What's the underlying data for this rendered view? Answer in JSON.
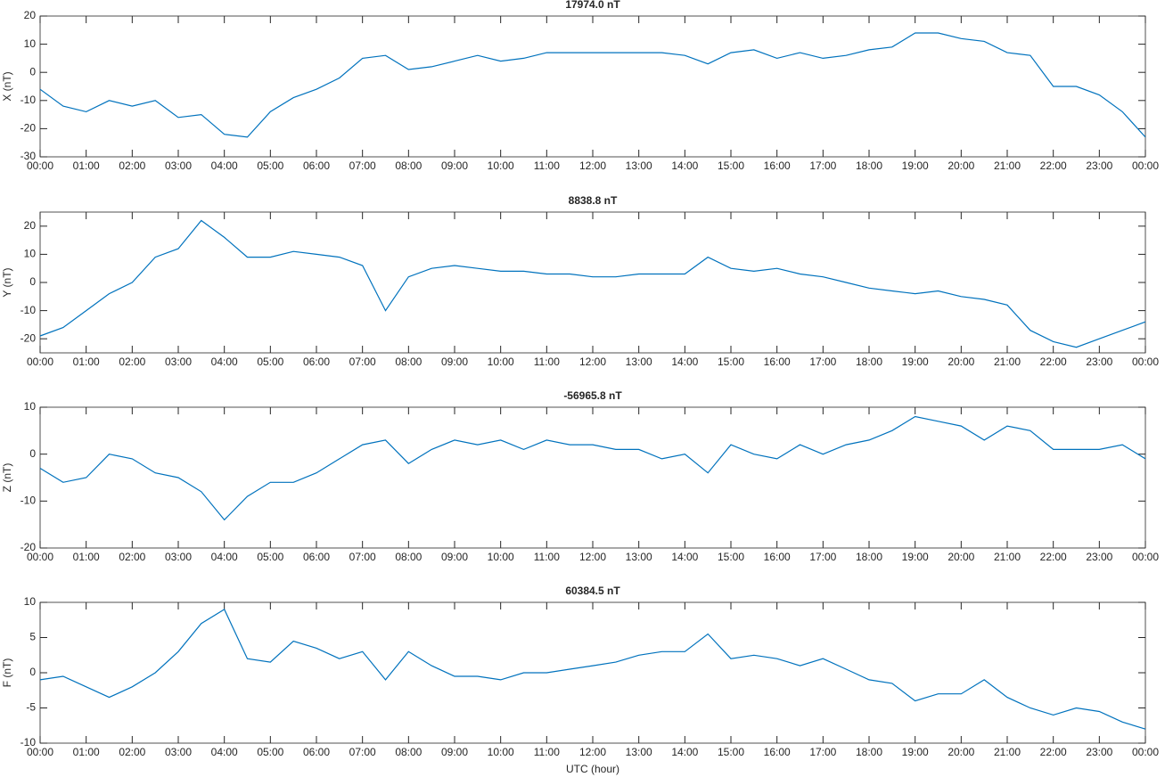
{
  "chart_data": [
    {
      "type": "line",
      "title": "17974.0 nT",
      "ylabel": "X (nT)",
      "color": "#0072bd",
      "x": [
        0,
        0.5,
        1,
        1.5,
        2,
        2.5,
        3,
        3.5,
        4,
        4.5,
        5,
        5.5,
        6,
        6.5,
        7,
        7.5,
        8,
        8.5,
        9,
        9.5,
        10,
        10.5,
        11,
        11.5,
        12,
        12.5,
        13,
        13.5,
        14,
        14.5,
        15,
        15.5,
        16,
        16.5,
        17,
        17.5,
        18,
        18.5,
        19,
        19.5,
        20,
        20.5,
        21,
        21.5,
        22,
        22.5,
        23,
        23.5,
        24
      ],
      "values": [
        -6,
        -12,
        -14,
        -10,
        -12,
        -10,
        -16,
        -15,
        -22,
        -23,
        -14,
        -9,
        -6,
        -2,
        5,
        6,
        1,
        2,
        4,
        6,
        4,
        5,
        7,
        7,
        7,
        7,
        7,
        7,
        6,
        3,
        7,
        8,
        5,
        7,
        5,
        6,
        8,
        9,
        14,
        14,
        12,
        11,
        7,
        6,
        -5,
        -5,
        -8,
        -14,
        -23
      ],
      "xlim": [
        0,
        24
      ],
      "ylim": [
        -30,
        20
      ],
      "yticks": [
        -30,
        -20,
        -10,
        0,
        10,
        20
      ],
      "xticks": [
        {
          "value": 0,
          "label": "00:00"
        },
        {
          "value": 1,
          "label": "01:00"
        },
        {
          "value": 2,
          "label": "02:00"
        },
        {
          "value": 3,
          "label": "03:00"
        },
        {
          "value": 4,
          "label": "04:00"
        },
        {
          "value": 5,
          "label": "05:00"
        },
        {
          "value": 6,
          "label": "06:00"
        },
        {
          "value": 7,
          "label": "07:00"
        },
        {
          "value": 8,
          "label": "08:00"
        },
        {
          "value": 9,
          "label": "09:00"
        },
        {
          "value": 10,
          "label": "10:00"
        },
        {
          "value": 11,
          "label": "11:00"
        },
        {
          "value": 12,
          "label": "12:00"
        },
        {
          "value": 13,
          "label": "13:00"
        },
        {
          "value": 14,
          "label": "14:00"
        },
        {
          "value": 15,
          "label": "15:00"
        },
        {
          "value": 16,
          "label": "16:00"
        },
        {
          "value": 17,
          "label": "17:00"
        },
        {
          "value": 18,
          "label": "18:00"
        },
        {
          "value": 19,
          "label": "19:00"
        },
        {
          "value": 20,
          "label": "20:00"
        },
        {
          "value": 21,
          "label": "21:00"
        },
        {
          "value": 22,
          "label": "22:00"
        },
        {
          "value": 23,
          "label": "23:00"
        },
        {
          "value": 24,
          "label": "00:00"
        }
      ]
    },
    {
      "type": "line",
      "title": "8838.8 nT",
      "ylabel": "Y (nT)",
      "color": "#0072bd",
      "x": [
        0,
        0.5,
        1,
        1.5,
        2,
        2.5,
        3,
        3.5,
        4,
        4.5,
        5,
        5.5,
        6,
        6.5,
        7,
        7.5,
        8,
        8.5,
        9,
        9.5,
        10,
        10.5,
        11,
        11.5,
        12,
        12.5,
        13,
        13.5,
        14,
        14.5,
        15,
        15.5,
        16,
        16.5,
        17,
        17.5,
        18,
        18.5,
        19,
        19.5,
        20,
        20.5,
        21,
        21.5,
        22,
        22.5,
        23,
        23.5,
        24
      ],
      "values": [
        -19,
        -16,
        -10,
        -4,
        0,
        9,
        12,
        22,
        16,
        9,
        9,
        11,
        10,
        9,
        6,
        -10,
        2,
        5,
        6,
        5,
        4,
        4,
        3,
        3,
        2,
        2,
        3,
        3,
        3,
        9,
        5,
        4,
        5,
        3,
        2,
        0,
        -2,
        -3,
        -4,
        -3,
        -5,
        -6,
        -8,
        -17,
        -21,
        -23,
        -20,
        -17,
        -14
      ],
      "xlim": [
        0,
        24
      ],
      "ylim": [
        -25,
        25
      ],
      "yticks": [
        -20,
        -10,
        0,
        10,
        20
      ],
      "xticks": [
        {
          "value": 0,
          "label": "00:00"
        },
        {
          "value": 1,
          "label": "01:00"
        },
        {
          "value": 2,
          "label": "02:00"
        },
        {
          "value": 3,
          "label": "03:00"
        },
        {
          "value": 4,
          "label": "04:00"
        },
        {
          "value": 5,
          "label": "05:00"
        },
        {
          "value": 6,
          "label": "06:00"
        },
        {
          "value": 7,
          "label": "07:00"
        },
        {
          "value": 8,
          "label": "08:00"
        },
        {
          "value": 9,
          "label": "09:00"
        },
        {
          "value": 10,
          "label": "10:00"
        },
        {
          "value": 11,
          "label": "11:00"
        },
        {
          "value": 12,
          "label": "12:00"
        },
        {
          "value": 13,
          "label": "13:00"
        },
        {
          "value": 14,
          "label": "14:00"
        },
        {
          "value": 15,
          "label": "15:00"
        },
        {
          "value": 16,
          "label": "16:00"
        },
        {
          "value": 17,
          "label": "17:00"
        },
        {
          "value": 18,
          "label": "18:00"
        },
        {
          "value": 19,
          "label": "19:00"
        },
        {
          "value": 20,
          "label": "20:00"
        },
        {
          "value": 21,
          "label": "21:00"
        },
        {
          "value": 22,
          "label": "22:00"
        },
        {
          "value": 23,
          "label": "23:00"
        },
        {
          "value": 24,
          "label": "00:00"
        }
      ]
    },
    {
      "type": "line",
      "title": "-56965.8 nT",
      "ylabel": "Z (nT)",
      "color": "#0072bd",
      "x": [
        0,
        0.5,
        1,
        1.5,
        2,
        2.5,
        3,
        3.5,
        4,
        4.5,
        5,
        5.5,
        6,
        6.5,
        7,
        7.5,
        8,
        8.5,
        9,
        9.5,
        10,
        10.5,
        11,
        11.5,
        12,
        12.5,
        13,
        13.5,
        14,
        14.5,
        15,
        15.5,
        16,
        16.5,
        17,
        17.5,
        18,
        18.5,
        19,
        19.5,
        20,
        20.5,
        21,
        21.5,
        22,
        22.5,
        23,
        23.5,
        24
      ],
      "values": [
        -3,
        -6,
        -5,
        0,
        -1,
        -4,
        -5,
        -8,
        -14,
        -9,
        -6,
        -6,
        -4,
        -1,
        2,
        3,
        -2,
        1,
        3,
        2,
        3,
        1,
        3,
        2,
        2,
        1,
        1,
        -1,
        0,
        -4,
        2,
        0,
        -1,
        2,
        0,
        2,
        3,
        5,
        8,
        7,
        6,
        3,
        6,
        5,
        1,
        1,
        1,
        2,
        -1
      ],
      "xlim": [
        0,
        24
      ],
      "ylim": [
        -20,
        10
      ],
      "yticks": [
        -20,
        -10,
        0,
        10
      ],
      "xticks": [
        {
          "value": 0,
          "label": "00:00"
        },
        {
          "value": 1,
          "label": "01:00"
        },
        {
          "value": 2,
          "label": "02:00"
        },
        {
          "value": 3,
          "label": "03:00"
        },
        {
          "value": 4,
          "label": "04:00"
        },
        {
          "value": 5,
          "label": "05:00"
        },
        {
          "value": 6,
          "label": "06:00"
        },
        {
          "value": 7,
          "label": "07:00"
        },
        {
          "value": 8,
          "label": "08:00"
        },
        {
          "value": 9,
          "label": "09:00"
        },
        {
          "value": 10,
          "label": "10:00"
        },
        {
          "value": 11,
          "label": "11:00"
        },
        {
          "value": 12,
          "label": "12:00"
        },
        {
          "value": 13,
          "label": "13:00"
        },
        {
          "value": 14,
          "label": "14:00"
        },
        {
          "value": 15,
          "label": "15:00"
        },
        {
          "value": 16,
          "label": "16:00"
        },
        {
          "value": 17,
          "label": "17:00"
        },
        {
          "value": 18,
          "label": "18:00"
        },
        {
          "value": 19,
          "label": "19:00"
        },
        {
          "value": 20,
          "label": "20:00"
        },
        {
          "value": 21,
          "label": "21:00"
        },
        {
          "value": 22,
          "label": "22:00"
        },
        {
          "value": 23,
          "label": "23:00"
        },
        {
          "value": 24,
          "label": "00:00"
        }
      ]
    },
    {
      "type": "line",
      "title": "60384.5 nT",
      "ylabel": "F (nT)",
      "xlabel": "UTC (hour)",
      "color": "#0072bd",
      "x": [
        0,
        0.5,
        1,
        1.5,
        2,
        2.5,
        3,
        3.5,
        4,
        4.5,
        5,
        5.5,
        6,
        6.5,
        7,
        7.5,
        8,
        8.5,
        9,
        9.5,
        10,
        10.5,
        11,
        11.5,
        12,
        12.5,
        13,
        13.5,
        14,
        14.5,
        15,
        15.5,
        16,
        16.5,
        17,
        17.5,
        18,
        18.5,
        19,
        19.5,
        20,
        20.5,
        21,
        21.5,
        22,
        22.5,
        23,
        23.5,
        24
      ],
      "values": [
        -1,
        -0.5,
        -2,
        -3.5,
        -2,
        0,
        3,
        7,
        9,
        2,
        1.5,
        4.5,
        3.5,
        2,
        3,
        -1,
        3,
        1,
        -0.5,
        -0.5,
        -1,
        0,
        0,
        0.5,
        1,
        1.5,
        2.5,
        3,
        3,
        5.5,
        2,
        2.5,
        2,
        1,
        2,
        0.5,
        -1,
        -1.5,
        -4,
        -3,
        -3,
        -1,
        -3.5,
        -5,
        -6,
        -5,
        -5.5,
        -7,
        -8
      ],
      "xlim": [
        0,
        24
      ],
      "ylim": [
        -10,
        10
      ],
      "yticks": [
        -10,
        -5,
        0,
        5,
        10
      ],
      "xticks": [
        {
          "value": 0,
          "label": "00:00"
        },
        {
          "value": 1,
          "label": "01:00"
        },
        {
          "value": 2,
          "label": "02:00"
        },
        {
          "value": 3,
          "label": "03:00"
        },
        {
          "value": 4,
          "label": "04:00"
        },
        {
          "value": 5,
          "label": "05:00"
        },
        {
          "value": 6,
          "label": "06:00"
        },
        {
          "value": 7,
          "label": "07:00"
        },
        {
          "value": 8,
          "label": "08:00"
        },
        {
          "value": 9,
          "label": "09:00"
        },
        {
          "value": 10,
          "label": "10:00"
        },
        {
          "value": 11,
          "label": "11:00"
        },
        {
          "value": 12,
          "label": "12:00"
        },
        {
          "value": 13,
          "label": "13:00"
        },
        {
          "value": 14,
          "label": "14:00"
        },
        {
          "value": 15,
          "label": "15:00"
        },
        {
          "value": 16,
          "label": "16:00"
        },
        {
          "value": 17,
          "label": "17:00"
        },
        {
          "value": 18,
          "label": "18:00"
        },
        {
          "value": 19,
          "label": "19:00"
        },
        {
          "value": 20,
          "label": "20:00"
        },
        {
          "value": 21,
          "label": "21:00"
        },
        {
          "value": 22,
          "label": "22:00"
        },
        {
          "value": 23,
          "label": "23:00"
        },
        {
          "value": 24,
          "label": "00:00"
        }
      ]
    }
  ]
}
